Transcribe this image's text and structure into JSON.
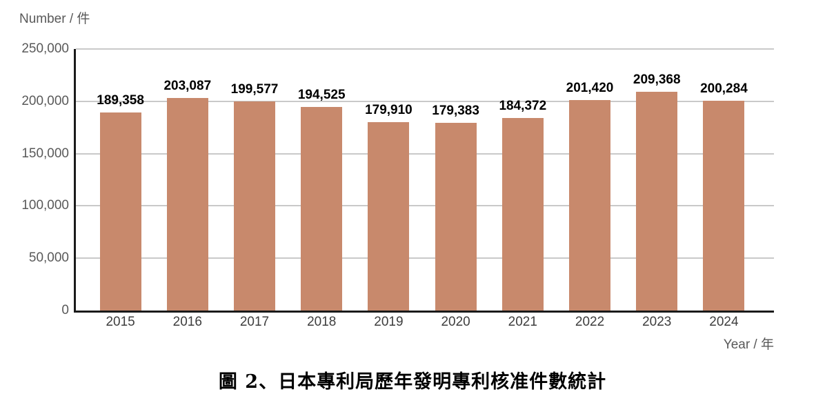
{
  "caption": "圖 2、日本專利局歷年發明專利核准件數統計",
  "colors": {
    "bar": "#c8896c",
    "gridline": "#c9c9c9",
    "axis": "#1a1a1a",
    "muted_text": "#595959",
    "tick_text": "#3d3d3d",
    "value_label_text": "#000000"
  },
  "chart_data": {
    "type": "bar",
    "title": "",
    "y_axis_title": "Number / 件",
    "x_axis_title": "Year / 年",
    "categories": [
      "2015",
      "2016",
      "2017",
      "2018",
      "2019",
      "2020",
      "2021",
      "2022",
      "2023",
      "2024"
    ],
    "values": [
      189358,
      203087,
      199577,
      194525,
      179910,
      179383,
      184372,
      201420,
      209368,
      200284
    ],
    "value_labels": [
      "189,358",
      "203,087",
      "199,577",
      "194,525",
      "179,910",
      "179,383",
      "184,372",
      "201,420",
      "209,368",
      "200,284"
    ],
    "ylim": [
      0,
      250000
    ],
    "yticks": [
      {
        "value": 0,
        "label": "0"
      },
      {
        "value": 50000,
        "label": "50,000"
      },
      {
        "value": 100000,
        "label": "100,000"
      },
      {
        "value": 150000,
        "label": "150,000"
      },
      {
        "value": 200000,
        "label": "200,000"
      },
      {
        "value": 250000,
        "label": "250,000"
      }
    ],
    "grid": true,
    "legend": "none"
  }
}
